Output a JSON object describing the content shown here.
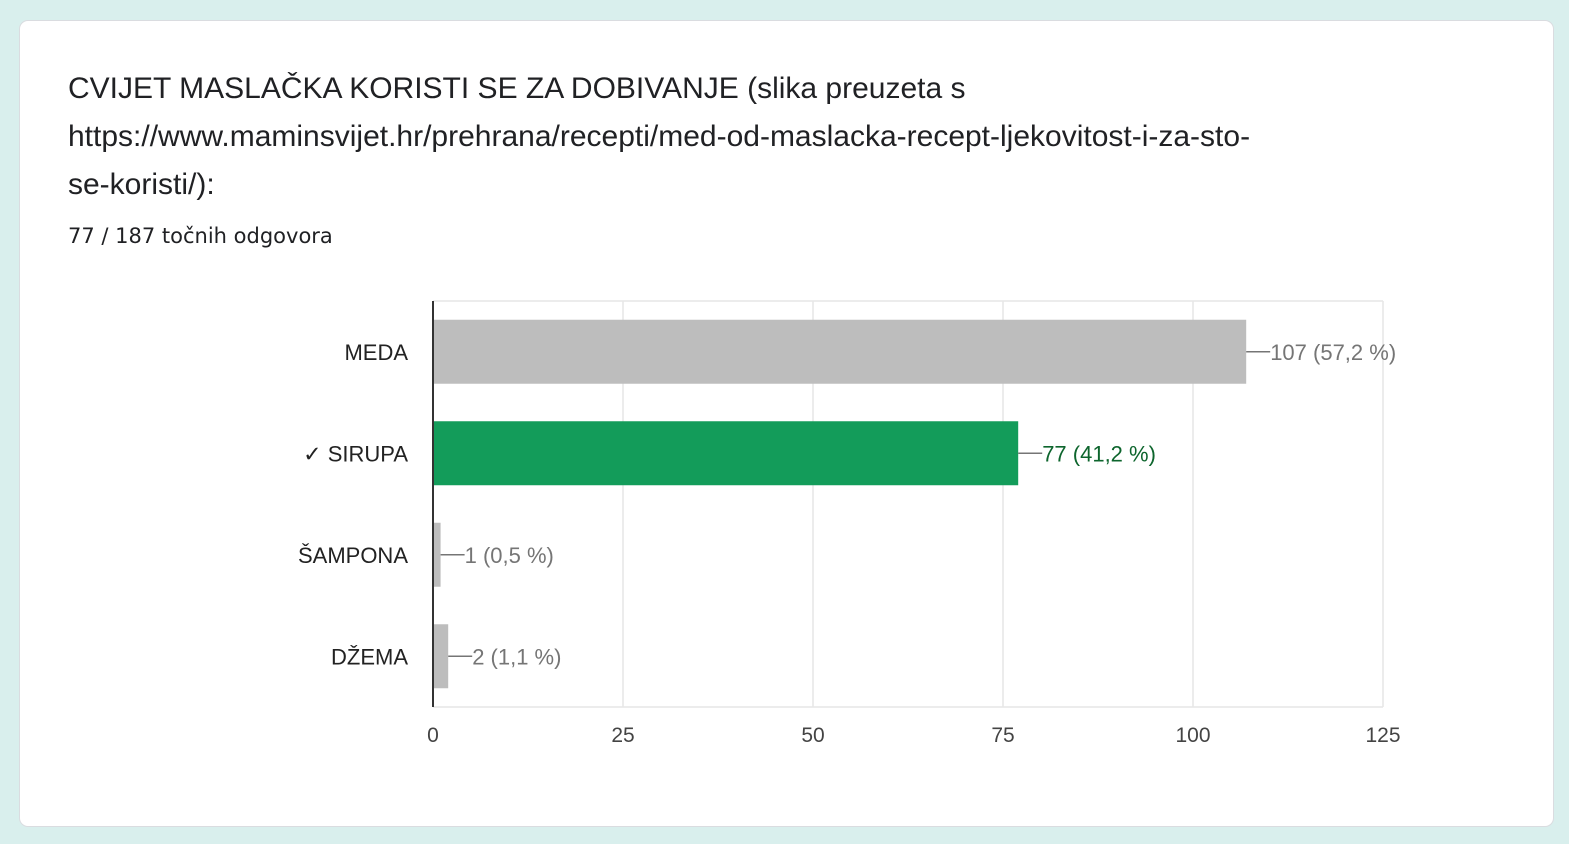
{
  "question": {
    "title_lines": [
      "CVIJET MASLAČKA KORISTI SE ZA DOBIVANJE (slika preuzeta s",
      "https://www.maminsvijet.hr/prehrana/recepti/med-od-maslacka-recept-ljekovitost-i-za-sto-",
      "se-koristi/):"
    ],
    "score_text": "77 / 187 točnih odgovora"
  },
  "chart_data": {
    "type": "bar",
    "orientation": "horizontal",
    "categories": [
      "MEDA",
      "✓ SIRUPA",
      "ŠAMPONA",
      "DŽEMA"
    ],
    "values": [
      107,
      77,
      1,
      2
    ],
    "value_labels": [
      "107 (57,2 %)",
      "77 (41,2 %)",
      "1 (0,5 %)",
      "2 (1,1 %)"
    ],
    "correct": [
      false,
      true,
      false,
      false
    ],
    "xlim": [
      0,
      125
    ],
    "xticks": [
      0,
      25,
      50,
      75,
      100,
      125
    ],
    "grid": true,
    "colors": {
      "default_bar": "#bdbdbd",
      "correct_bar": "#139c5a",
      "default_label": "#757575",
      "correct_label": "#0d652d",
      "grid": "#e6e6e6",
      "axis": "#333333"
    }
  }
}
